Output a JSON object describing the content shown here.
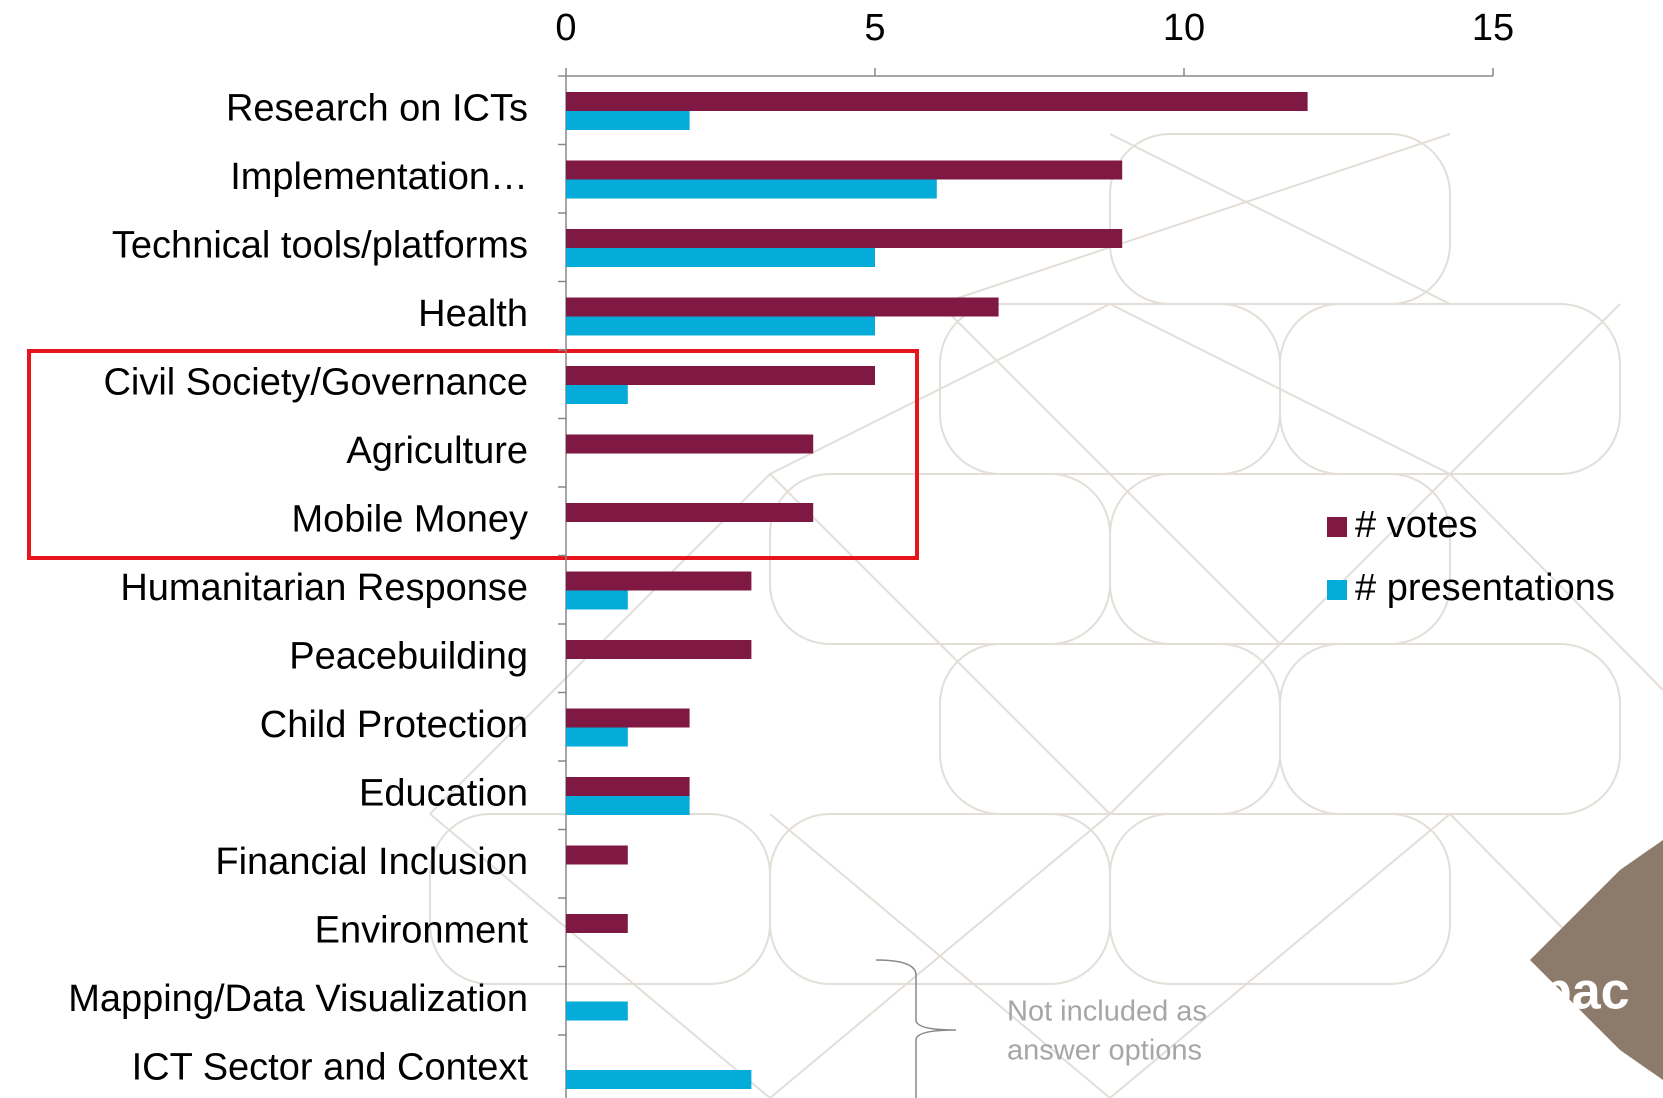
{
  "chart_data": {
    "type": "hbar",
    "categories": [
      "Research on ICTs",
      "Implementation…",
      "Technical tools/platforms",
      "Health",
      "Civil Society/Governance",
      "Agriculture",
      "Mobile Money",
      "Humanitarian Response",
      "Peacebuilding",
      "Child Protection",
      "Education",
      "Financial Inclusion",
      "Environment",
      "Mapping/Data Visualization",
      "ICT Sector and Context"
    ],
    "series": [
      {
        "name": "# votes",
        "color": "#7f1843",
        "values": [
          12,
          9,
          9,
          7,
          5,
          4,
          4,
          3,
          3,
          2,
          2,
          1,
          1,
          0,
          0
        ]
      },
      {
        "name": "# presentations",
        "color": "#05acd9",
        "values": [
          2,
          6,
          5,
          5,
          1,
          0,
          0,
          1,
          0,
          1,
          2,
          0,
          0,
          1,
          3
        ]
      }
    ],
    "xlim": [
      0,
      15
    ],
    "xticks": [
      0,
      5,
      10,
      15
    ],
    "legend": "right",
    "annotation": [
      "Not included as",
      "answer options"
    ],
    "logo": "pac"
  }
}
